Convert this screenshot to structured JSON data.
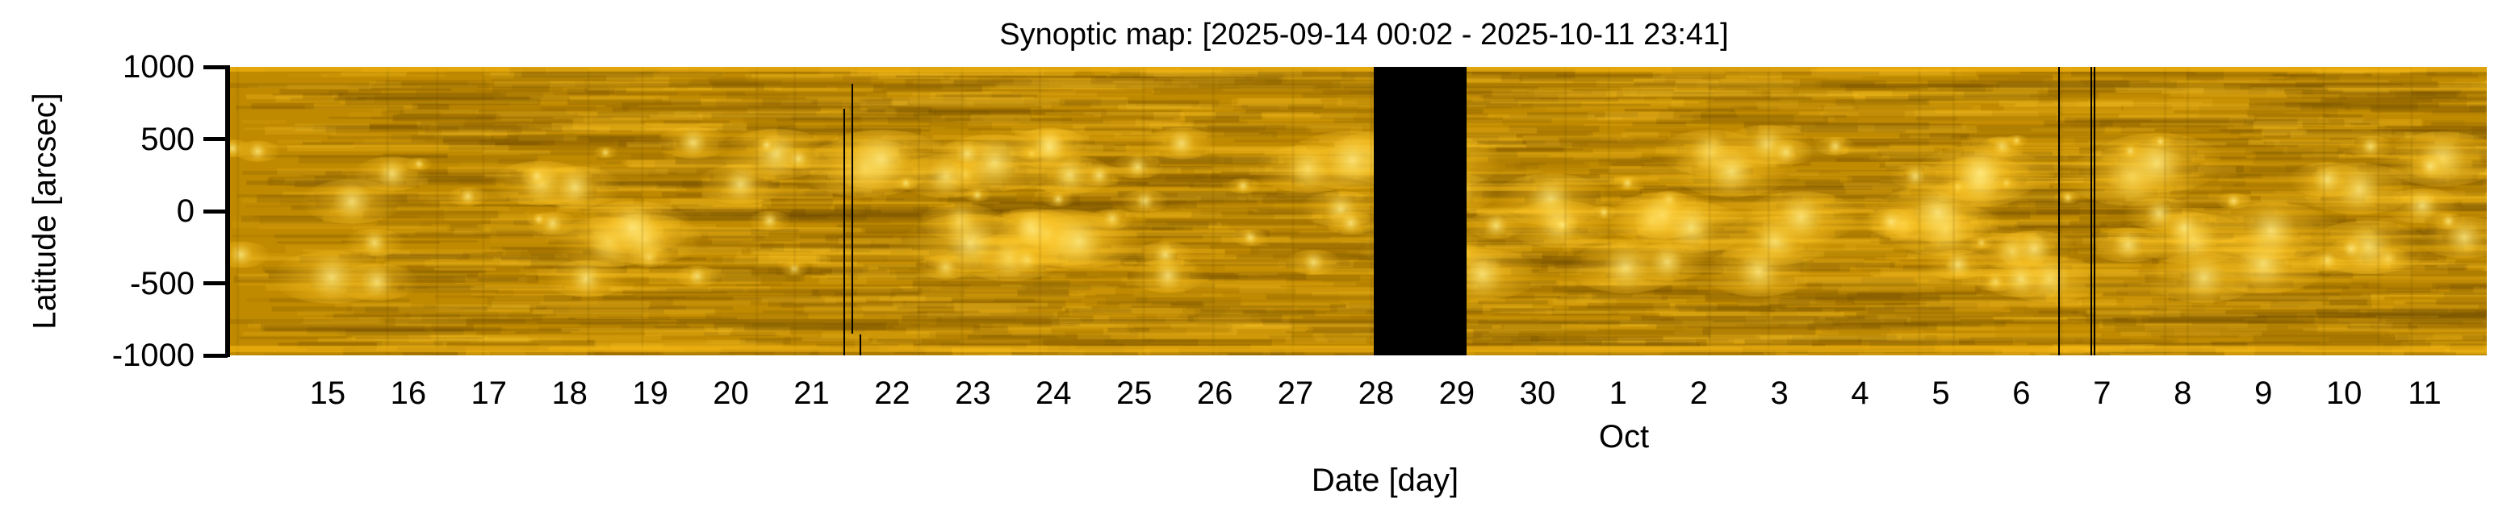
{
  "chart_data": {
    "type": "heatmap",
    "title": "Synoptic map: [2025-09-14 00:02 - 2025-10-11 23:41]",
    "xlabel": "Date [day]",
    "ylabel": "Latitude [arcsec]",
    "ylim": [
      -1000,
      1000
    ],
    "xlim_days_from_start": [
      0,
      28.0
    ],
    "yticks": [
      {
        "value": 1000,
        "label": "1000"
      },
      {
        "value": 500,
        "label": "500"
      },
      {
        "value": 0,
        "label": "0"
      },
      {
        "value": -500,
        "label": "-500"
      },
      {
        "value": -1000,
        "label": "-1000"
      }
    ],
    "xticks": [
      {
        "day": 1,
        "label": "15"
      },
      {
        "day": 2,
        "label": "16"
      },
      {
        "day": 3,
        "label": "17"
      },
      {
        "day": 4,
        "label": "18"
      },
      {
        "day": 5,
        "label": "19"
      },
      {
        "day": 6,
        "label": "20"
      },
      {
        "day": 7,
        "label": "21"
      },
      {
        "day": 8,
        "label": "22"
      },
      {
        "day": 9,
        "label": "23"
      },
      {
        "day": 10,
        "label": "24"
      },
      {
        "day": 11,
        "label": "25"
      },
      {
        "day": 12,
        "label": "26"
      },
      {
        "day": 13,
        "label": "27"
      },
      {
        "day": 14,
        "label": "28"
      },
      {
        "day": 15,
        "label": "29"
      },
      {
        "day": 16,
        "label": "30"
      },
      {
        "day": 17,
        "label": "1"
      },
      {
        "day": 18,
        "label": "2"
      },
      {
        "day": 19,
        "label": "3"
      },
      {
        "day": 20,
        "label": "4"
      },
      {
        "day": 21,
        "label": "5"
      },
      {
        "day": 22,
        "label": "6"
      },
      {
        "day": 23,
        "label": "7"
      },
      {
        "day": 24,
        "label": "8"
      },
      {
        "day": 25,
        "label": "9"
      },
      {
        "day": 26,
        "label": "10"
      },
      {
        "day": 27,
        "label": "11"
      }
    ],
    "month_label": "Oct",
    "data_gaps_days": [
      [
        14.2,
        15.35
      ]
    ],
    "missing_frame_lines_days": [
      7.63,
      7.73,
      7.83,
      22.69,
      23.09,
      23.13
    ],
    "colormap": {
      "dark": "#7a5600",
      "base": "#c08a00",
      "bright": "#ffd24a"
    }
  }
}
